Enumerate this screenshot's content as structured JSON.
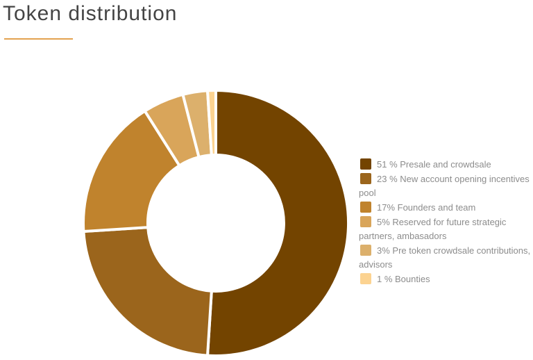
{
  "header": {
    "title": "Token distribution",
    "accent_color": "#e3a24f"
  },
  "chart_data": {
    "type": "pie",
    "style": "donut",
    "title": "Token distribution",
    "legend_position": "right",
    "slices": [
      {
        "label": "51 % Presale and crowdsale",
        "value": 51,
        "color": "#734400"
      },
      {
        "label": "23 % New account opening incentives pool",
        "value": 23,
        "color": "#9b651c"
      },
      {
        "label": "17% Founders and team",
        "value": 17,
        "color": "#c0832d"
      },
      {
        "label": "5% Reserved for future strategic partners, ambasadors",
        "value": 5,
        "color": "#d9a55a"
      },
      {
        "label": "3% Pre token crowdsale contributions, advisors",
        "value": 3,
        "color": "#dcb06c"
      },
      {
        "label": "1 % Bounties",
        "value": 1,
        "color": "#fcd391"
      }
    ]
  }
}
